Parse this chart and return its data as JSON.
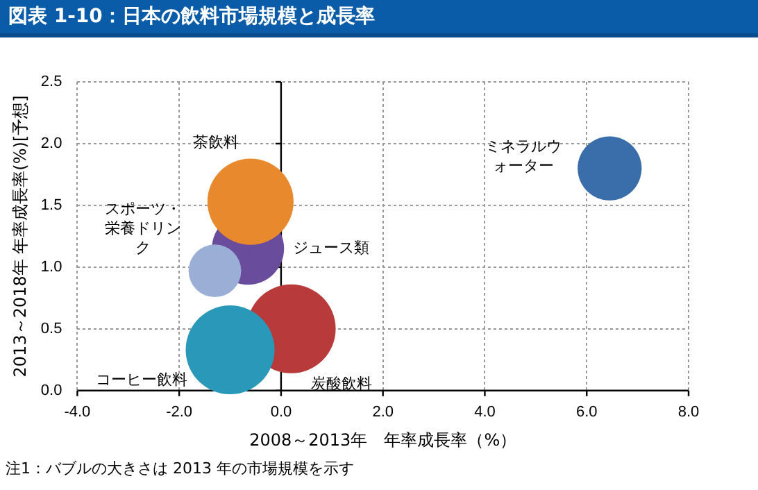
{
  "chart_data": {
    "type": "bubble",
    "title": "図表 1-10：日本の飲料市場規模と成長率",
    "xlabel": "2008～2013年　年率成長率（%）",
    "ylabel": "2013～2018年 年率成長率(%)[予想]",
    "annotations": [
      "注1：バブルの大きさは 2013 年の市場規模を示す"
    ],
    "xlim": [
      -4,
      8
    ],
    "xticks": [
      {
        "value": -4,
        "label": "-4.0"
      },
      {
        "value": -2,
        "label": "-2.0"
      },
      {
        "value": 0,
        "label": "0.0"
      },
      {
        "value": 2,
        "label": "2.0"
      },
      {
        "value": 4,
        "label": "4.0"
      },
      {
        "value": 6,
        "label": "6.0"
      },
      {
        "value": 8,
        "label": "8.0"
      }
    ],
    "ylim": [
      0,
      2.5
    ],
    "yticks": [
      {
        "value": 0,
        "label": "0.0"
      },
      {
        "value": 0.5,
        "label": "0.5"
      },
      {
        "value": 1,
        "label": "1.0"
      },
      {
        "value": 1.5,
        "label": "1.5"
      },
      {
        "value": 2,
        "label": "2.0"
      },
      {
        "value": 2.5,
        "label": "2.5"
      }
    ],
    "grid": true,
    "legend": false,
    "series": [
      {
        "name": "茶飲料",
        "color": "#e8892e",
        "x": [
          -0.6
        ],
        "values": [
          1.53
        ],
        "sizes": [
          0.94
        ]
      },
      {
        "name": "スポーツ・栄養ドリンク",
        "color": "#9aaed6",
        "x": [
          -1.3
        ],
        "values": [
          0.97
        ],
        "sizes": [
          0.35
        ]
      },
      {
        "name": "ジュース類",
        "color": "#6a4c9c",
        "x": [
          -0.65
        ],
        "values": [
          1.15
        ],
        "sizes": [
          0.66
        ]
      },
      {
        "name": "コーヒー飲料",
        "color": "#2a98b8",
        "x": [
          -1.0
        ],
        "values": [
          0.33
        ],
        "sizes": [
          1
        ]
      },
      {
        "name": "炭酸飲料",
        "color": "#b83a3a",
        "x": [
          0.2
        ],
        "values": [
          0.5
        ],
        "sizes": [
          1
        ]
      },
      {
        "name": "ミネラルウォーター",
        "color": "#3a6eaa",
        "x": [
          6.45
        ],
        "values": [
          1.8
        ],
        "sizes": [
          0.52
        ]
      }
    ]
  }
}
